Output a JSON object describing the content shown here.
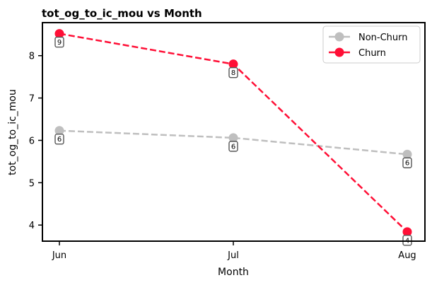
{
  "chart_data": {
    "type": "line",
    "title": "tot_og_to_ic_mou vs Month",
    "xlabel": "Month",
    "ylabel": "tot_og_to_ic_mou",
    "categories": [
      "Jun",
      "Jul",
      "Aug"
    ],
    "ylim": [
      3.62,
      8.78
    ],
    "yticks": [
      4,
      5,
      6,
      7,
      8
    ],
    "yticks_text": [
      "4",
      "5",
      "6",
      "7",
      "8"
    ],
    "grid": false,
    "legend_position": "top-right",
    "series": [
      {
        "name": "Non-Churn",
        "color": "#bfbfbf",
        "values": [
          6.23,
          6.06,
          5.67
        ],
        "labels": [
          "6",
          "6",
          "6"
        ]
      },
      {
        "name": "Churn",
        "color": "#ff0f36",
        "values": [
          8.52,
          7.8,
          3.84
        ],
        "labels": [
          "9",
          "8",
          "4"
        ]
      }
    ]
  }
}
